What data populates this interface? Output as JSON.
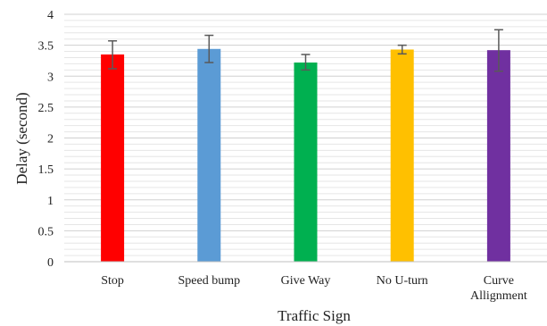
{
  "chart_data": {
    "type": "bar",
    "title": "",
    "xlabel": "Traffic Sign",
    "ylabel": "Delay (second)",
    "ylim": [
      0,
      4
    ],
    "yticks": [
      "0",
      "0.5",
      "1",
      "1.5",
      "2",
      "2.5",
      "3",
      "3.5",
      "4"
    ],
    "minor_grid_step": 0.1,
    "grid": true,
    "categories": [
      [
        "Stop"
      ],
      [
        "Speed bump"
      ],
      [
        "Give Way"
      ],
      [
        "No U-turn"
      ],
      [
        "Curve",
        "Allignment"
      ]
    ],
    "values": [
      3.35,
      3.44,
      3.22,
      3.43,
      3.42
    ],
    "error_low": [
      3.12,
      3.22,
      3.1,
      3.36,
      3.08
    ],
    "error_high": [
      3.57,
      3.66,
      3.35,
      3.5,
      3.75
    ],
    "colors": [
      "#ff0000",
      "#5b9bd5",
      "#00b050",
      "#ffc000",
      "#7030a0"
    ]
  }
}
